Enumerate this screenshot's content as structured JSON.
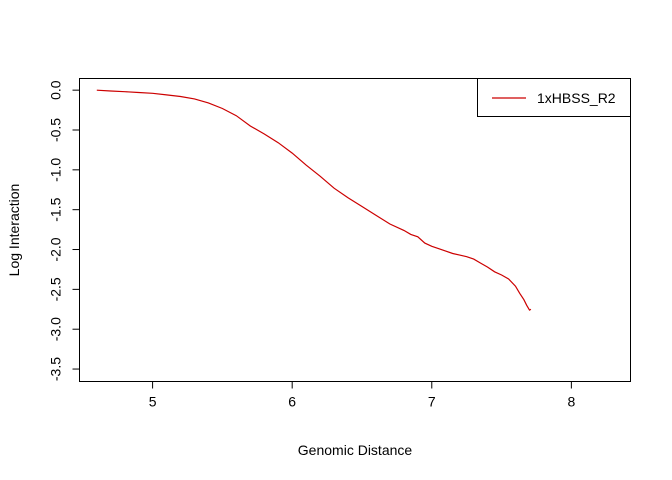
{
  "chart_data": {
    "type": "line",
    "title": "",
    "xlabel": "Genomic Distance",
    "ylabel": "Log Interaction",
    "xlim": [
      4.48,
      8.42
    ],
    "ylim": [
      -3.65,
      0.14
    ],
    "xticks": [
      5,
      6,
      7,
      8
    ],
    "xtick_labels": [
      "5",
      "6",
      "7",
      "8"
    ],
    "yticks": [
      0.0,
      -0.5,
      -1.0,
      -1.5,
      -2.0,
      -2.5,
      -3.0,
      -3.5
    ],
    "ytick_labels": [
      "0.0",
      "-0.5",
      "-1.0",
      "-1.5",
      "-2.0",
      "-2.5",
      "-3.0",
      "-3.5"
    ],
    "grid": false,
    "legend_position": "top-right",
    "series": [
      {
        "name": "1xHBSS_R2",
        "color": "#cc0000",
        "x": [
          4.6,
          4.7,
          4.8,
          4.9,
          5.0,
          5.1,
          5.2,
          5.3,
          5.4,
          5.5,
          5.6,
          5.7,
          5.8,
          5.9,
          6.0,
          6.1,
          6.2,
          6.3,
          6.4,
          6.5,
          6.6,
          6.7,
          6.8,
          6.85,
          6.9,
          6.95,
          7.0,
          7.05,
          7.1,
          7.15,
          7.2,
          7.25,
          7.3,
          7.35,
          7.4,
          7.45,
          7.5,
          7.55,
          7.6,
          7.63,
          7.66,
          7.68,
          7.7,
          7.71
        ],
        "y": [
          0.0,
          -0.01,
          -0.02,
          -0.03,
          -0.04,
          -0.06,
          -0.08,
          -0.11,
          -0.16,
          -0.23,
          -0.32,
          -0.45,
          -0.55,
          -0.66,
          -0.79,
          -0.94,
          -1.08,
          -1.23,
          -1.35,
          -1.46,
          -1.57,
          -1.68,
          -1.76,
          -1.81,
          -1.84,
          -1.92,
          -1.96,
          -1.99,
          -2.02,
          -2.05,
          -2.07,
          -2.09,
          -2.12,
          -2.17,
          -2.22,
          -2.28,
          -2.32,
          -2.37,
          -2.46,
          -2.55,
          -2.63,
          -2.7,
          -2.76,
          -2.75
        ]
      }
    ]
  }
}
